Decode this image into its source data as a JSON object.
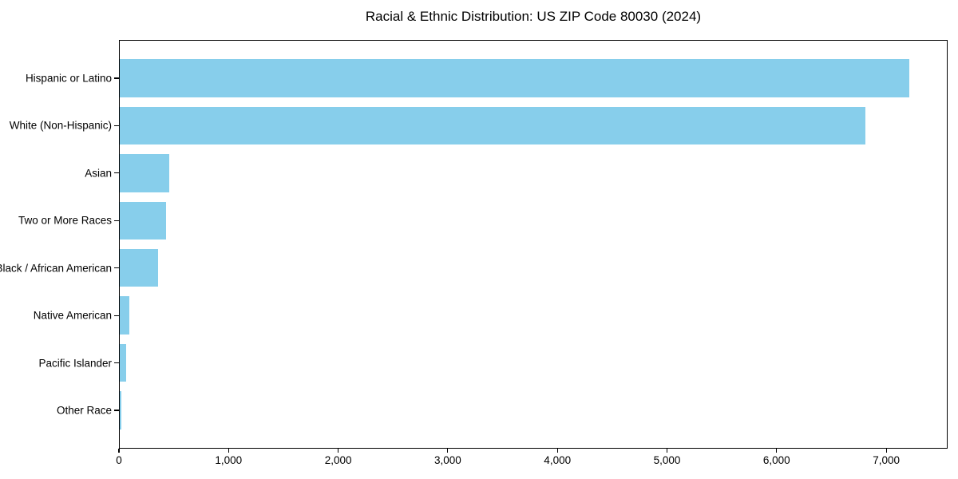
{
  "figure": {
    "background_color": "#ffffff",
    "spine_color": "#000000",
    "text_color": "#000000"
  },
  "chart_data": {
    "type": "bar",
    "orientation": "horizontal",
    "title": "Racial & Ethnic Distribution: US ZIP Code 80030 (2024)",
    "categories": [
      "Hispanic or Latino",
      "White (Non-Hispanic)",
      "Asian",
      "Two or More Races",
      "Black / African American",
      "Native American",
      "Pacific Islander",
      "Other Race"
    ],
    "values": [
      7200,
      6800,
      455,
      425,
      350,
      90,
      55,
      15
    ],
    "bar_color": "#87CEEB",
    "xlabel": "",
    "ylabel": "",
    "xlim": [
      0,
      7560
    ],
    "x_ticks": [
      0,
      1000,
      2000,
      3000,
      4000,
      5000,
      6000,
      7000
    ],
    "x_tick_labels": [
      "0",
      "1,000",
      "2,000",
      "3,000",
      "4,000",
      "5,000",
      "6,000",
      "7,000"
    ],
    "grid": false,
    "legend": "none"
  }
}
